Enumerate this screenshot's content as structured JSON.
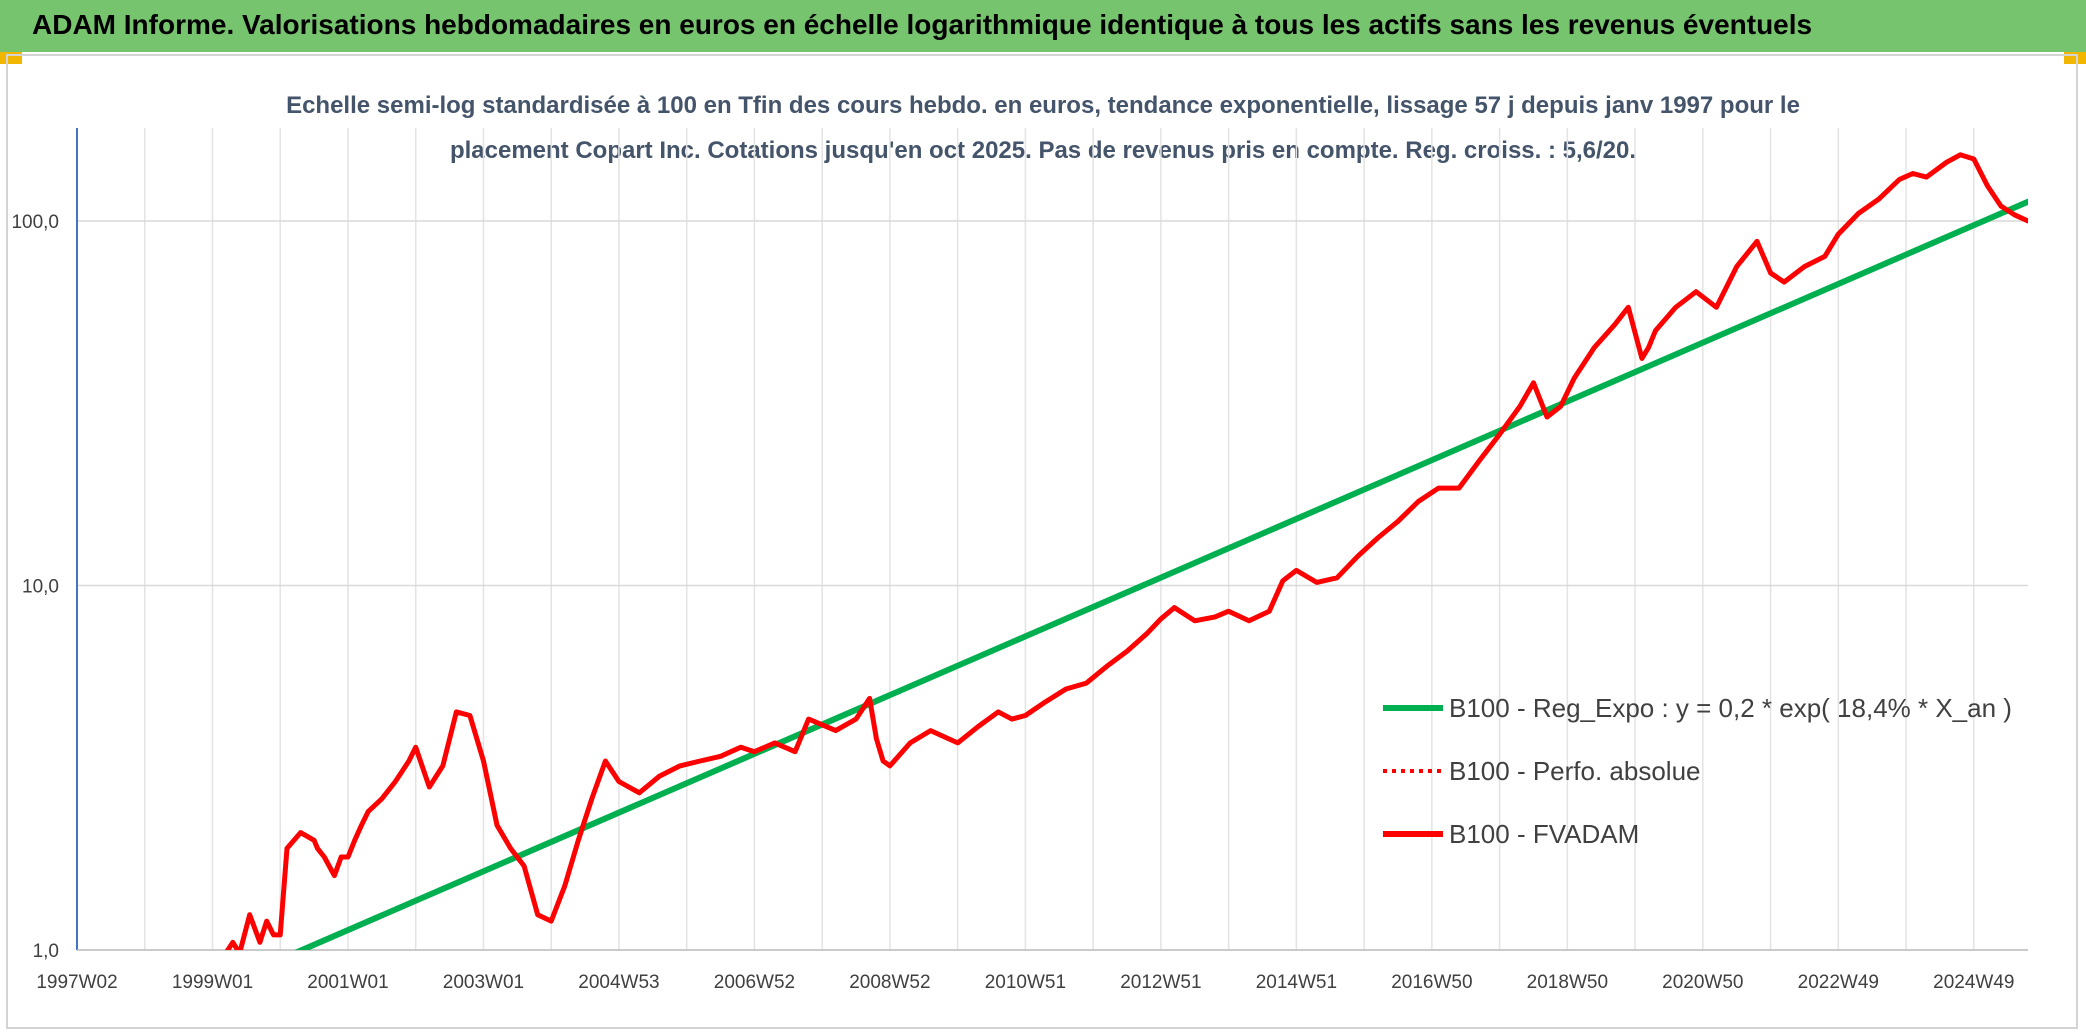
{
  "header": {
    "title": "ADAM Informe. Valorisations hebdomadaires en euros en échelle logarithmique identique à tous les actifs sans les revenus éventuels"
  },
  "colors": {
    "header_bg": "#77c46f",
    "trend": "#00b050",
    "fvadam": "#ff0000",
    "perfo": "#ff0000",
    "accent_corner": "#f1b600"
  },
  "chart_data": {
    "type": "line",
    "subtitle_lines": [
      "Echelle semi-log standardisée à 100 en Tfin des cours hebdo. en euros, tendance exponentielle, lissage 57 j depuis janv 1997 pour le",
      "placement Copart Inc. Cotations jusqu'en oct 2025. Pas de revenus pris en compte. Reg. croiss. : 5,6/20."
    ],
    "y_scale": "log",
    "ylim": [
      1,
      180
    ],
    "y_ticks": [
      {
        "value": 1,
        "label": "1,0"
      },
      {
        "value": 10,
        "label": "10,0"
      },
      {
        "value": 100,
        "label": "100,0"
      }
    ],
    "xlim": [
      1997.0,
      2025.8
    ],
    "x_ticks": [
      {
        "value": 1997.0,
        "label": "1997W02"
      },
      {
        "value": 1999.0,
        "label": "1999W01"
      },
      {
        "value": 2001.0,
        "label": "2001W01"
      },
      {
        "value": 2003.0,
        "label": "2003W01"
      },
      {
        "value": 2005.0,
        "label": "2004W53"
      },
      {
        "value": 2007.0,
        "label": "2006W52"
      },
      {
        "value": 2009.0,
        "label": "2008W52"
      },
      {
        "value": 2011.0,
        "label": "2010W51"
      },
      {
        "value": 2013.0,
        "label": "2012W51"
      },
      {
        "value": 2015.0,
        "label": "2014W51"
      },
      {
        "value": 2017.0,
        "label": "2016W50"
      },
      {
        "value": 2019.0,
        "label": "2018W50"
      },
      {
        "value": 2021.0,
        "label": "2020W50"
      },
      {
        "value": 2023.0,
        "label": "2022W49"
      },
      {
        "value": 2025.0,
        "label": "2024W49"
      }
    ],
    "grid": true,
    "legend_position": "center-right",
    "series": [
      {
        "name": "B100 - Reg_Expo : y = 0,2 * exp( 18,4% *  X_an )",
        "style": "solid",
        "x": [
          2000.1,
          2025.8
        ],
        "y": [
          0.96,
          113
        ]
      },
      {
        "name": "B100 - Perfo. absolue",
        "style": "dotted",
        "x": [],
        "y": []
      },
      {
        "name": "B100 - FVADAM",
        "style": "solid",
        "x": [
          1999.15,
          1999.3,
          1999.4,
          1999.55,
          1999.7,
          1999.8,
          1999.9,
          2000.0,
          2000.1,
          2000.3,
          2000.5,
          2000.55,
          2000.65,
          2000.8,
          2000.9,
          2001.0,
          2001.1,
          2001.2,
          2001.3,
          2001.5,
          2001.7,
          2001.9,
          2002.0,
          2002.2,
          2002.4,
          2002.6,
          2002.8,
          2003.0,
          2003.1,
          2003.2,
          2003.4,
          2003.6,
          2003.8,
          2004.0,
          2004.2,
          2004.4,
          2004.6,
          2004.8,
          2005.0,
          2005.3,
          2005.6,
          2005.9,
          2006.2,
          2006.5,
          2006.8,
          2007.0,
          2007.3,
          2007.6,
          2007.8,
          2008.2,
          2008.5,
          2008.7,
          2008.8,
          2008.9,
          2009.0,
          2009.3,
          2009.6,
          2010.0,
          2010.3,
          2010.6,
          2010.8,
          2011.0,
          2011.3,
          2011.6,
          2011.9,
          2012.2,
          2012.5,
          2012.8,
          2013.0,
          2013.2,
          2013.5,
          2013.8,
          2014.0,
          2014.3,
          2014.6,
          2014.8,
          2015.0,
          2015.3,
          2015.6,
          2015.9,
          2016.2,
          2016.5,
          2016.8,
          2017.1,
          2017.4,
          2017.7,
          2018.0,
          2018.3,
          2018.5,
          2018.7,
          2018.9,
          2019.1,
          2019.4,
          2019.7,
          2019.9,
          2020.1,
          2020.2,
          2020.3,
          2020.6,
          2020.9,
          2021.2,
          2021.5,
          2021.8,
          2022.0,
          2022.2,
          2022.5,
          2022.8,
          2023.0,
          2023.3,
          2023.6,
          2023.9,
          2024.1,
          2024.3,
          2024.6,
          2024.8,
          2025.0,
          2025.2,
          2025.4,
          2025.6,
          2025.8
        ],
        "y": [
          0.95,
          1.05,
          0.98,
          1.25,
          1.05,
          1.2,
          1.1,
          1.1,
          1.9,
          2.1,
          2.0,
          1.9,
          1.8,
          1.6,
          1.8,
          1.8,
          2.0,
          2.2,
          2.4,
          2.6,
          2.9,
          3.3,
          3.6,
          2.8,
          3.2,
          4.5,
          4.4,
          3.3,
          2.7,
          2.2,
          1.9,
          1.7,
          1.25,
          1.2,
          1.5,
          2.0,
          2.6,
          3.3,
          2.9,
          2.7,
          3.0,
          3.2,
          3.3,
          3.4,
          3.6,
          3.5,
          3.7,
          3.5,
          4.3,
          4.0,
          4.3,
          4.9,
          3.8,
          3.3,
          3.2,
          3.7,
          4.0,
          3.7,
          4.1,
          4.5,
          4.3,
          4.4,
          4.8,
          5.2,
          5.4,
          6.0,
          6.6,
          7.4,
          8.1,
          8.7,
          8.0,
          8.2,
          8.5,
          8.0,
          8.5,
          10.3,
          11.0,
          10.2,
          10.5,
          12.0,
          13.5,
          15.0,
          17.0,
          18.5,
          18.5,
          22.0,
          26.0,
          31.0,
          36.0,
          29.0,
          31.0,
          37.0,
          45.0,
          52.0,
          58.0,
          42.0,
          45.0,
          50.0,
          58.0,
          64.0,
          58.0,
          75.0,
          88.0,
          72.0,
          68.0,
          75.0,
          80.0,
          92.0,
          105.0,
          115.0,
          130.0,
          135.0,
          132.0,
          145.0,
          152.0,
          148.0,
          125.0,
          110.0,
          104.0,
          100.0
        ]
      }
    ]
  }
}
